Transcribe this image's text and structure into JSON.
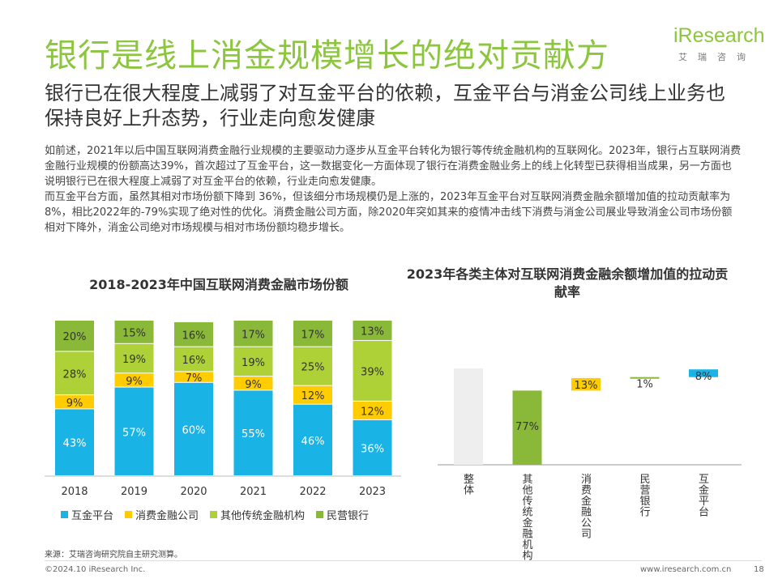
{
  "header": {
    "title": "银行是线上消金规模增长的绝对贡献方",
    "logo_word": "iResearch",
    "logo_sub": "艾瑞咨询",
    "brand_color": "#8cc63e"
  },
  "subtitle": "银行已在很大程度上减弱了对互金平台的依赖，互金平台与消金公司线上业务也保持良好上升态势，行业走向愈发健康",
  "body": {
    "p1": "如前述，2021年以后中国互联网消费金融行业规模的主要驱动力逐步从互金平台转化为银行等传统金融机构的互联网化。2023年，银行占互联网消费金融行业规模的份额高达39%，首次超过了互金平台，这一数据变化一方面体现了银行在消费金融业务上的线上化转型已获得相当成果，另一方面也说明银行已在很大程度上减弱了对互金平台的依赖，行业走向愈发健康。",
    "p2": "而互金平台方面，虽然其相对市场份额下降到 36%，但该细分市场规模仍是上涨的，2023年互金平台对互联网消费金融余额增加值的拉动贡献率为8%，相比2022年的-79%实现了绝对性的优化。消费金融公司方面，除2020年突如其来的疫情冲击线下消费与消金公司展业导致消金公司市场份额相对下降外，消金公司绝对市场规模与相对市场份额均稳步增长。"
  },
  "chart_data": [
    {
      "type": "bar",
      "stacked": true,
      "title": "2018-2023年中国互联网消费金融市场份额",
      "categories": [
        "2018",
        "2019",
        "2020",
        "2021",
        "2022",
        "2023"
      ],
      "series": [
        {
          "name": "互金平台",
          "color": "#1ab3e6",
          "values": [
            43,
            57,
            60,
            55,
            46,
            36
          ],
          "labels": [
            "43%",
            "57%",
            "60%",
            "55%",
            "46%",
            "36%"
          ]
        },
        {
          "name": "消费金融公司",
          "color": "#ffcc00",
          "values": [
            9,
            9,
            7,
            9,
            12,
            12
          ],
          "labels": [
            "9%",
            "9%",
            "7%",
            "9%",
            "12%",
            "12%"
          ]
        },
        {
          "name": "其他传统金融机构",
          "color": "#add136",
          "values": [
            28,
            19,
            16,
            19,
            25,
            39
          ],
          "labels": [
            "28%",
            "19%",
            "16%",
            "19%",
            "25%",
            "39%"
          ]
        },
        {
          "name": "民营银行",
          "color": "#8ab839",
          "values": [
            20,
            15,
            16,
            17,
            17,
            13
          ],
          "labels": [
            "20%",
            "15%",
            "16%",
            "17%",
            "17%",
            "13%"
          ]
        }
      ],
      "ylim": [
        0,
        100
      ],
      "legend": "bottom"
    },
    {
      "type": "bar",
      "waterfall": true,
      "title": "2023年各类主体对互联网消费金融余额增加值的拉动贡献率",
      "categories": [
        "整体",
        "其他传统金融机构",
        "消费金融公司",
        "民营银行",
        "互金平台"
      ],
      "values": [
        100,
        77,
        13,
        1,
        8
      ],
      "labels": [
        "",
        "77%",
        "13%",
        "1%",
        "8%"
      ],
      "colors": [
        "#eeeeee",
        "#8ab839",
        "#ffcc00",
        "#8ab839",
        "#1ab3e6"
      ],
      "ylim": [
        0,
        100
      ]
    }
  ],
  "footer": {
    "source": "来源：艾瑞咨询研究院自主研究测算。",
    "copyright": "©2024.10 iResearch Inc.",
    "website": "www.iresearch.com.cn",
    "page": "18"
  }
}
